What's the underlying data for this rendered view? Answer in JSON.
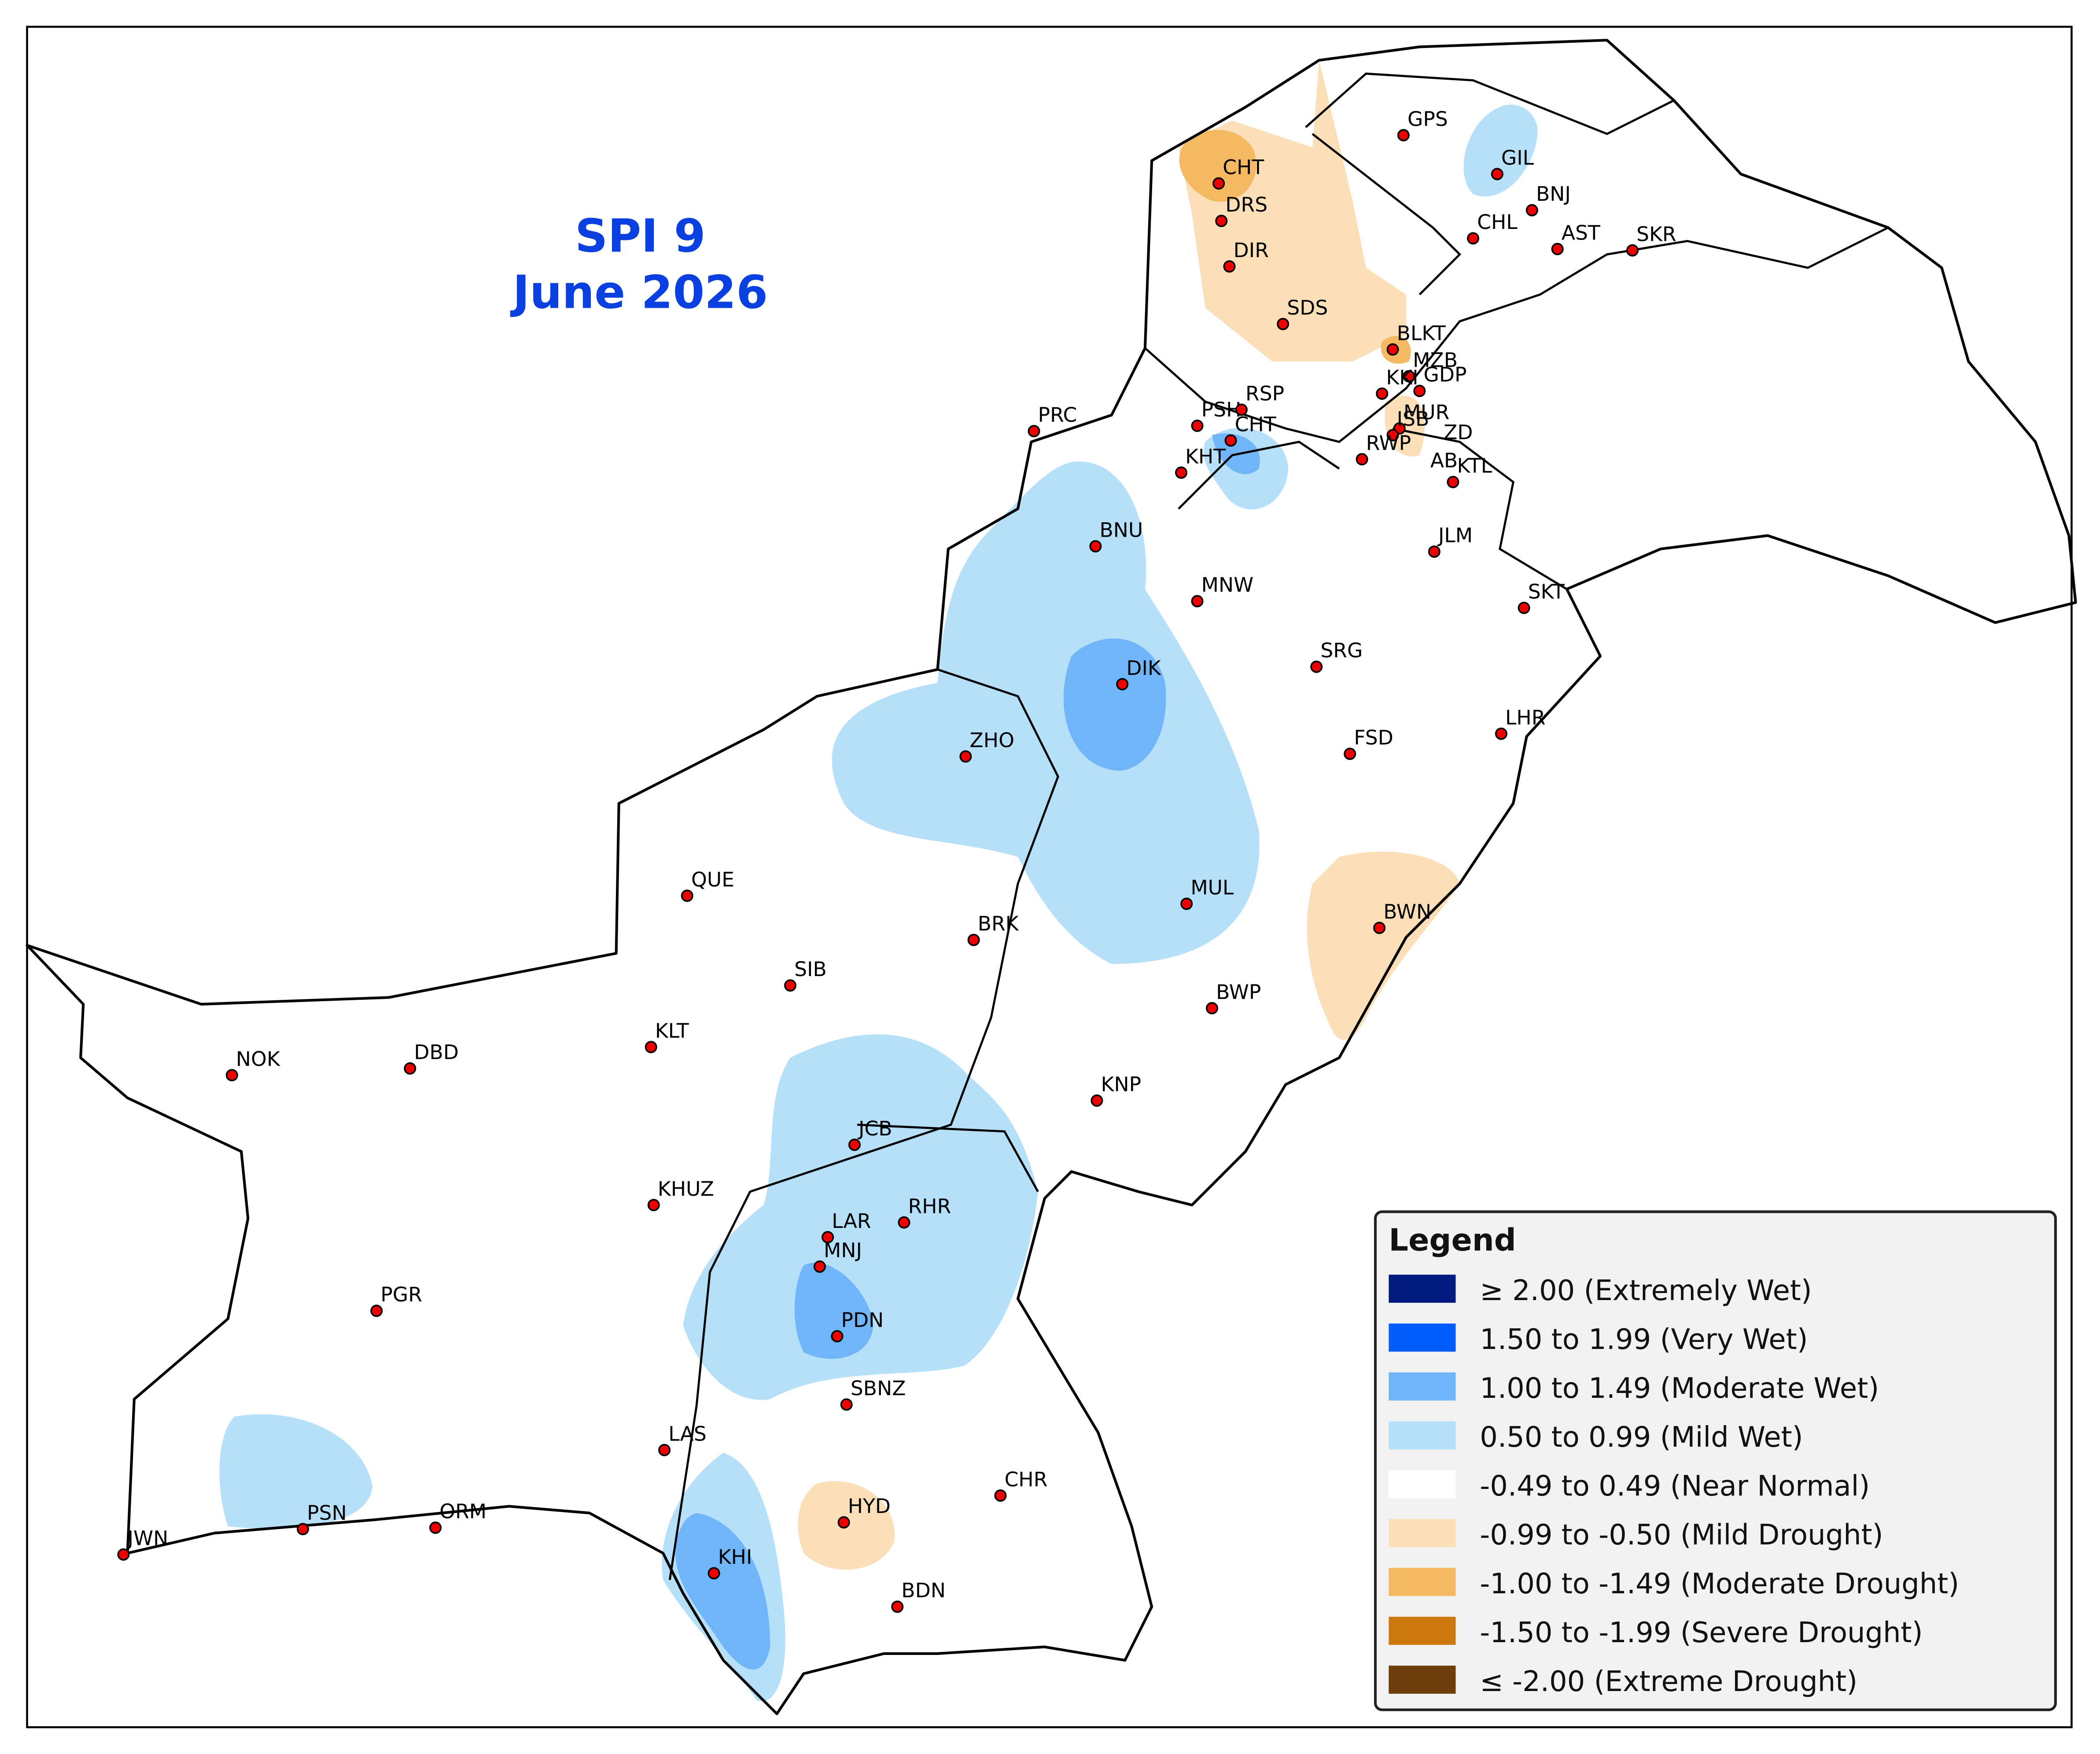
{
  "title": {
    "line1": "SPI 9",
    "line2": "June 2026"
  },
  "stations": [
    "GPS",
    "GIL",
    "BNJ",
    "CHL",
    "AST",
    "SKR",
    "CHT",
    "DRS",
    "DIR",
    "SDS",
    "BLKT",
    "MZB",
    "KKI",
    "GDP",
    "MUR",
    "ISB",
    "ZD",
    "RWP",
    "AB",
    "KTL",
    "PSH",
    "RSP",
    "CHT",
    "KHT",
    "PRC",
    "BNU",
    "MNW",
    "JLM",
    "SKT",
    "DIK",
    "SRG",
    "ZHO",
    "FSD",
    "LHR",
    "QUE",
    "MUL",
    "BWN",
    "BRK",
    "SIB",
    "BWP",
    "KLT",
    "NOK",
    "DBD",
    "KNP",
    "JCB",
    "KHUZ",
    "LAR",
    "RHR",
    "MNJ",
    "PDN",
    "PGR",
    "SBNZ",
    "LAS",
    "CHR",
    "HYD",
    "PSN",
    "ORM",
    "JWN",
    "KHI",
    "BDN"
  ],
  "legend": {
    "title": "Legend",
    "items": [
      {
        "label": "≥ 2.00 (Extremely Wet)",
        "color": "#001a80"
      },
      {
        "label": "1.50 to 1.99 (Very Wet)",
        "color": "#005cf9"
      },
      {
        "label": "1.00 to 1.49 (Moderate Wet)",
        "color": "#70b5f8"
      },
      {
        "label": "0.50 to 0.99 (Mild Wet)",
        "color": "#b6e0fa"
      },
      {
        "label": "-0.49 to 0.49 (Near Normal)",
        "color": "#ffffff"
      },
      {
        "label": "-0.99 to -0.50 (Mild Drought)",
        "color": "#fbdfb8"
      },
      {
        "label": "-1.00 to -1.49 (Moderate Drought)",
        "color": "#f5b962"
      },
      {
        "label": "-1.50 to -1.99 (Severe Drought)",
        "color": "#cc780a"
      },
      {
        "label": "≤ -2.00 (Extreme Drought)",
        "color": "#6e3e0a"
      }
    ]
  }
}
